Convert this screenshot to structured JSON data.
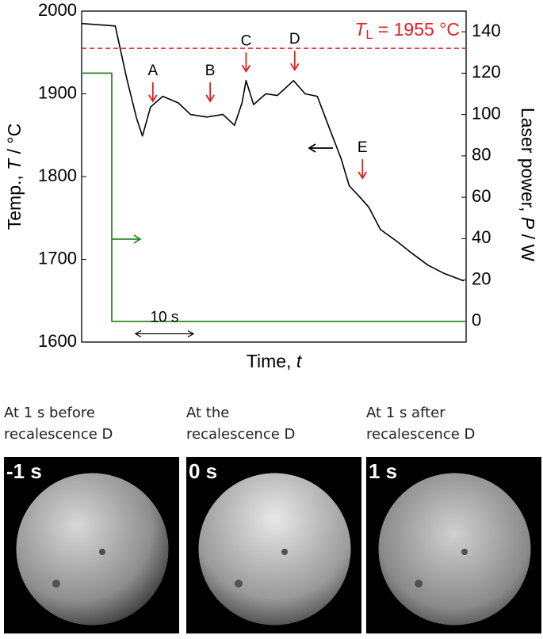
{
  "chart_data": {
    "type": "line",
    "x_label": {
      "text": "Time, ",
      "var": "t"
    },
    "y_label": {
      "text": "Temp., ",
      "var": "T",
      "unit": " / °C"
    },
    "y2_label": {
      "text": "Laser power, ",
      "var": "P",
      "unit": " / W"
    },
    "xlim": [
      0,
      66.4
    ],
    "ylim": [
      1600,
      2000
    ],
    "yticks": [
      1600,
      1700,
      1800,
      1900,
      2000
    ],
    "y2lim": [
      -10,
      150
    ],
    "y2ticks": [
      0,
      20,
      40,
      60,
      80,
      100,
      120,
      140
    ],
    "series": [
      {
        "color": "#000000",
        "x": [
          0,
          5.8,
          7.8,
          9.5,
          10.5,
          11.9,
          14,
          16.7,
          18.8,
          21.6,
          24.4,
          26.4,
          27.7,
          28.4,
          29.7,
          31.8,
          33.8,
          36.6,
          38.6,
          40.7,
          42.7,
          44.8,
          46.2,
          48.2,
          49.6,
          51.6,
          54.4,
          57.1,
          59.8,
          62.6,
          66
        ],
        "values": [
          1985,
          1982,
          1918,
          1870,
          1849,
          1884,
          1897,
          1889,
          1875,
          1872,
          1875,
          1862,
          1889,
          1916,
          1887,
          1900,
          1898,
          1916,
          1900,
          1897,
          1860,
          1822,
          1789,
          1774,
          1763,
          1736,
          1722,
          1707,
          1693,
          1683,
          1674
        ]
      },
      {
        "color": "#2e8b22",
        "axis": "y2",
        "x": [
          0,
          5.2,
          5.2,
          66.4
        ],
        "values": [
          120,
          120,
          0,
          0
        ]
      }
    ],
    "liquidus": {
      "value": 1955,
      "color": "#e02020",
      "symbol": "T",
      "sub": "L",
      "rest": " = 1955 °C"
    },
    "annotations": [
      {
        "text": "A",
        "x": 12.3,
        "y": 1891
      },
      {
        "text": "B",
        "x": 22.2,
        "y": 1891
      },
      {
        "text": "C",
        "x": 28.4,
        "y": 1927
      },
      {
        "text": "D",
        "x": 36.8,
        "y": 1929
      },
      {
        "text": "E",
        "x": 48.5,
        "y": 1798
      }
    ],
    "scale_bar": {
      "label": "10 s",
      "length": 10,
      "x": 9.3,
      "y": 1610
    }
  },
  "images": [
    {
      "caption": [
        "At 1 s before",
        "recalescence D"
      ],
      "time": "-1 s"
    },
    {
      "caption": [
        "At the",
        "recalescence D"
      ],
      "time": "0 s"
    },
    {
      "caption": [
        "At 1 s after",
        "recalescence D"
      ],
      "time": "1 s"
    }
  ]
}
